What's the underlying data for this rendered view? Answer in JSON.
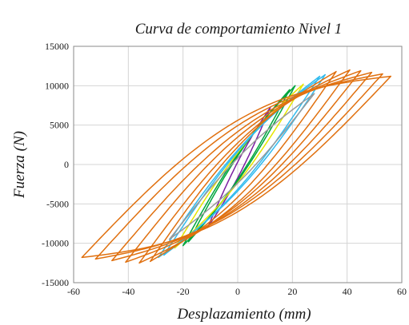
{
  "chart_data": {
    "type": "line",
    "title": "Curva de comportamiento Nivel 1",
    "xlabel": "Desplazamiento  (mm)",
    "ylabel": "Fuerza  (N)",
    "xlim": [
      -60,
      60
    ],
    "ylim": [
      -15000,
      15000
    ],
    "xticks": [
      "-60",
      "-40",
      "-20",
      "0",
      "20",
      "40",
      "60"
    ],
    "yticks": [
      "15000",
      "10000",
      "5000",
      "0",
      "-5000",
      "-10000",
      "-15000"
    ],
    "grid": true,
    "legend": "none",
    "series": [
      {
        "color": "#7b1fa2",
        "loops": [
          {
            "dmax": 12,
            "fmax": 7300,
            "dmin": -11,
            "fmin": -8000,
            "w": 1000
          }
        ]
      },
      {
        "color": "#00a63e",
        "loops": [
          {
            "dmax": 19,
            "fmax": 9500,
            "dmin": -18,
            "fmin": -9800,
            "w": 1500
          },
          {
            "dmax": 21,
            "fmax": 10000,
            "dmin": -20,
            "fmin": -10300,
            "w": 1700
          }
        ]
      },
      {
        "color": "#e6e600",
        "loops": [
          {
            "dmax": 24,
            "fmax": 10200,
            "dmin": -23,
            "fmin": -10600,
            "w": 1900
          }
        ]
      },
      {
        "color": "#33bbee",
        "loops": [
          {
            "dmax": 30,
            "fmax": 11200,
            "dmin": -27,
            "fmin": -11500,
            "w": 2400
          },
          {
            "dmax": 32,
            "fmax": 11400,
            "dmin": -29,
            "fmin": -11800,
            "w": 2600
          }
        ]
      },
      {
        "color": "#9a9a9a",
        "loops": [
          {
            "dmax": 28,
            "fmax": 9000,
            "dmin": -25,
            "fmin": -9500,
            "w": 1600
          }
        ]
      },
      {
        "color": "#e0700f",
        "loops": [
          {
            "dmax": 36,
            "fmax": 11800,
            "dmin": -32,
            "fmin": -12300,
            "w": 3200
          },
          {
            "dmax": 41,
            "fmax": 12000,
            "dmin": -36,
            "fmin": -12500,
            "w": 3800
          },
          {
            "dmax": 45,
            "fmax": 11900,
            "dmin": -41,
            "fmin": -12400,
            "w": 4300
          },
          {
            "dmax": 49,
            "fmax": 11700,
            "dmin": -46,
            "fmin": -12200,
            "w": 4800
          },
          {
            "dmax": 53,
            "fmax": 11500,
            "dmin": -52,
            "fmin": -12000,
            "w": 5300
          },
          {
            "dmax": 56,
            "fmax": 11200,
            "dmin": -57,
            "fmin": -11800,
            "w": 5800
          }
        ]
      }
    ]
  }
}
